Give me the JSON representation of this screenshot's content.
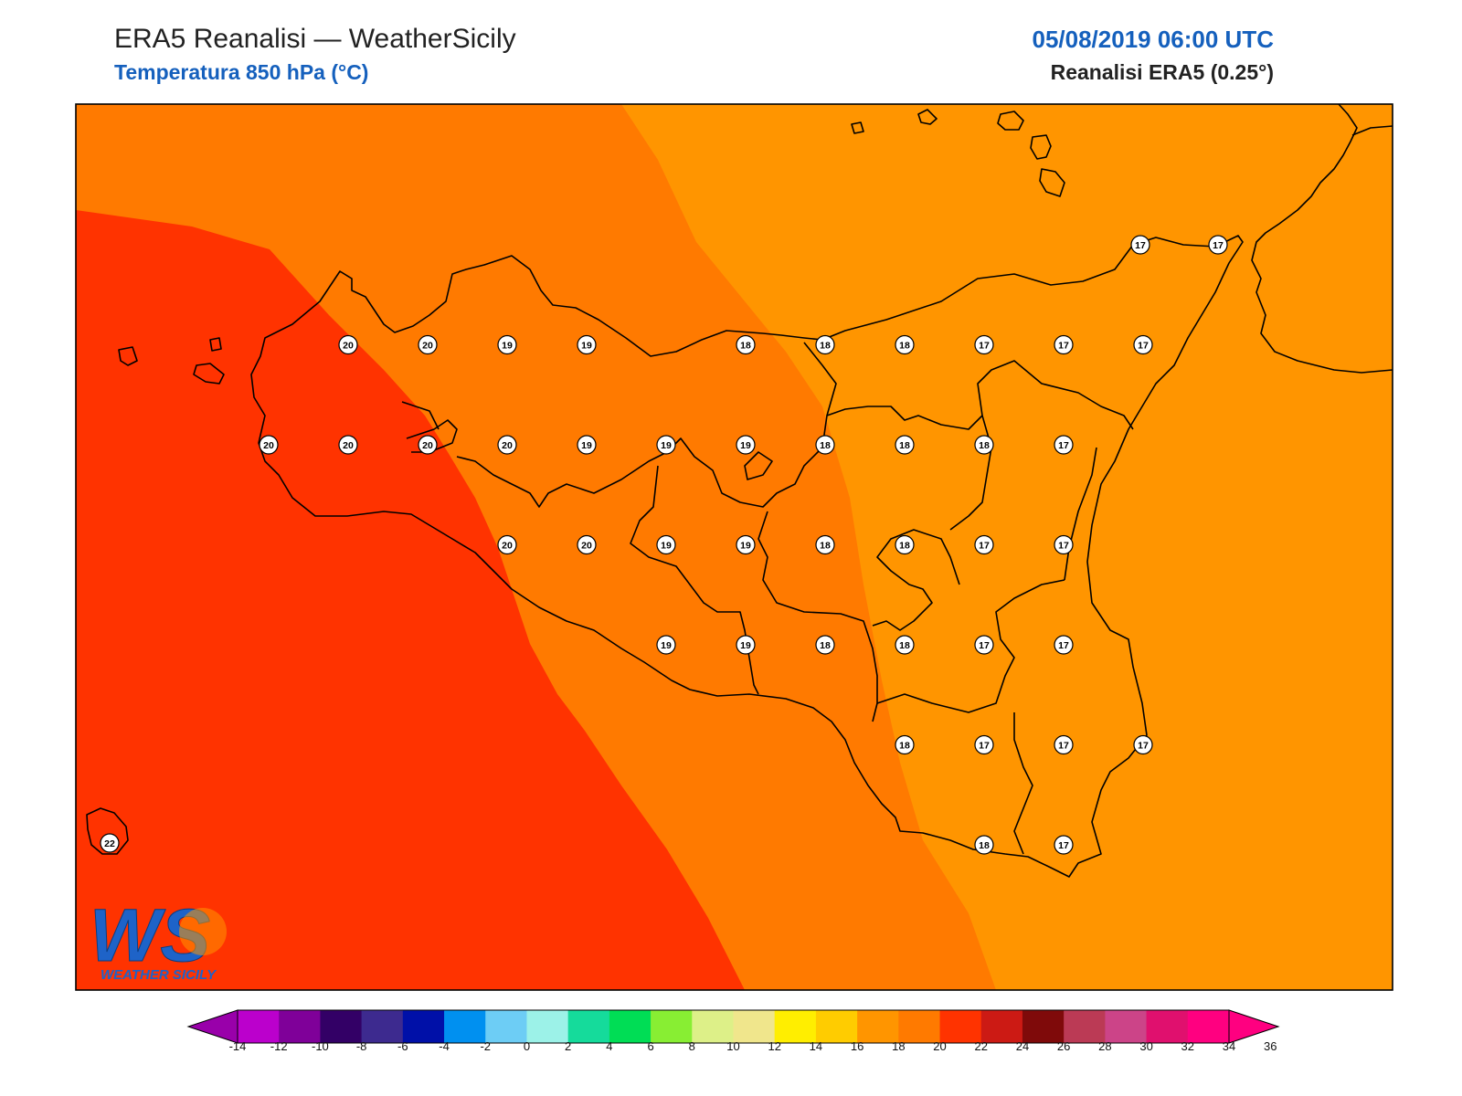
{
  "header": {
    "title": "ERA5 Reanalisi — WeatherSicily",
    "subtitle": "Temperatura 850 hPa (°C)",
    "datetime": "05/08/2019 06:00 UTC",
    "source": "Reanalisi ERA5 (0.25°)"
  },
  "logo": {
    "letters": "WS",
    "text": "WEATHER SICILY"
  },
  "colors": {
    "band_22_24": "#ff3300",
    "band_20_22": "#ff7a00",
    "band_18_20": "#ff9500",
    "coastline": "#000000",
    "station_fill": "#ffffff"
  },
  "stations": [
    {
      "row": 0,
      "col": 13,
      "value": "17"
    },
    {
      "row": 0,
      "col": 14,
      "value": "17"
    },
    {
      "row": 1,
      "col": 3,
      "value": "20"
    },
    {
      "row": 1,
      "col": 4,
      "value": "20"
    },
    {
      "row": 1,
      "col": 5,
      "value": "19"
    },
    {
      "row": 1,
      "col": 6,
      "value": "19"
    },
    {
      "row": 1,
      "col": 8,
      "value": "18"
    },
    {
      "row": 1,
      "col": 9,
      "value": "18"
    },
    {
      "row": 1,
      "col": 10,
      "value": "18"
    },
    {
      "row": 1,
      "col": 11,
      "value": "17"
    },
    {
      "row": 1,
      "col": 12,
      "value": "17"
    },
    {
      "row": 1,
      "col": 13,
      "value": "17"
    },
    {
      "row": 2,
      "col": 2,
      "value": "20"
    },
    {
      "row": 2,
      "col": 3,
      "value": "20"
    },
    {
      "row": 2,
      "col": 4,
      "value": "20"
    },
    {
      "row": 2,
      "col": 5,
      "value": "20"
    },
    {
      "row": 2,
      "col": 6,
      "value": "19"
    },
    {
      "row": 2,
      "col": 7,
      "value": "19"
    },
    {
      "row": 2,
      "col": 8,
      "value": "19"
    },
    {
      "row": 2,
      "col": 9,
      "value": "18"
    },
    {
      "row": 2,
      "col": 10,
      "value": "18"
    },
    {
      "row": 2,
      "col": 11,
      "value": "18"
    },
    {
      "row": 2,
      "col": 12,
      "value": "17"
    },
    {
      "row": 3,
      "col": 5,
      "value": "20"
    },
    {
      "row": 3,
      "col": 6,
      "value": "20"
    },
    {
      "row": 3,
      "col": 7,
      "value": "19"
    },
    {
      "row": 3,
      "col": 8,
      "value": "19"
    },
    {
      "row": 3,
      "col": 9,
      "value": "18"
    },
    {
      "row": 3,
      "col": 10,
      "value": "18"
    },
    {
      "row": 3,
      "col": 11,
      "value": "17"
    },
    {
      "row": 3,
      "col": 12,
      "value": "17"
    },
    {
      "row": 4,
      "col": 7,
      "value": "19"
    },
    {
      "row": 4,
      "col": 8,
      "value": "19"
    },
    {
      "row": 4,
      "col": 9,
      "value": "18"
    },
    {
      "row": 4,
      "col": 10,
      "value": "18"
    },
    {
      "row": 4,
      "col": 11,
      "value": "17"
    },
    {
      "row": 4,
      "col": 12,
      "value": "17"
    },
    {
      "row": 5,
      "col": 10,
      "value": "18"
    },
    {
      "row": 5,
      "col": 11,
      "value": "17"
    },
    {
      "row": 5,
      "col": 12,
      "value": "17"
    },
    {
      "row": 5,
      "col": 13,
      "value": "17"
    },
    {
      "row": 6,
      "col": 11,
      "value": "18"
    },
    {
      "row": 6,
      "col": 12,
      "value": "17"
    },
    {
      "row": 6,
      "col": 0,
      "value": "22"
    }
  ],
  "colorbar": {
    "labels": [
      "-14",
      "-12",
      "-10",
      "-8",
      "-6",
      "-4",
      "-2",
      "0",
      "2",
      "4",
      "6",
      "8",
      "10",
      "12",
      "14",
      "16",
      "18",
      "20",
      "22",
      "24",
      "26",
      "28",
      "30",
      "32",
      "34",
      "36"
    ],
    "colors": [
      "#bb00cc",
      "#7f0099",
      "#330066",
      "#3d2a8f",
      "#0010a8",
      "#0090f0",
      "#6dcdf5",
      "#9cf2e8",
      "#15db9b",
      "#00dd55",
      "#88ee33",
      "#ddf088",
      "#f0e68c",
      "#ffee00",
      "#ffcc00",
      "#ff9500",
      "#ff7a00",
      "#ff3300",
      "#cc1a14",
      "#7f0a0a",
      "#bb3a55",
      "#cc4488",
      "#e0106e",
      "#ff0080"
    ],
    "under_color": "#9900aa",
    "over_color": "#ff0080"
  }
}
